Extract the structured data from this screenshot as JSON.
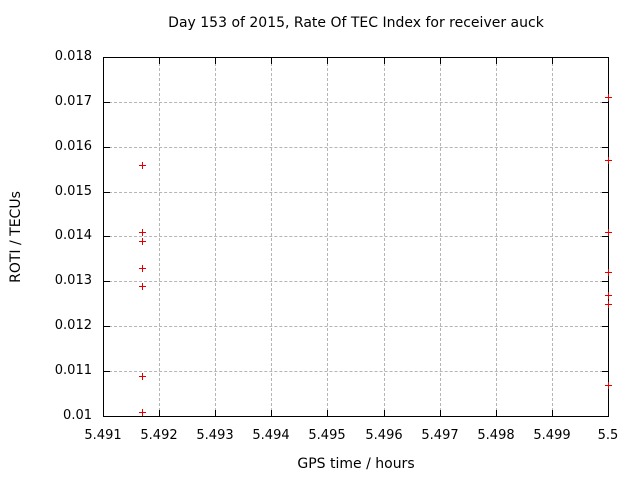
{
  "chart_data": {
    "type": "scatter",
    "title": "Day 153 of 2015, Rate Of TEC Index for receiver auck",
    "xlabel": "GPS time / hours",
    "ylabel": "ROTI / TECUs",
    "xlim": [
      5.491,
      5.5
    ],
    "ylim": [
      0.01,
      0.018
    ],
    "grid": true,
    "legend_position": "none",
    "marker": "plus",
    "colors": {
      "marker": "#e00000",
      "grid": "#b5b5b5",
      "frame": "#000000",
      "text": "#000000",
      "background": "#ffffff"
    },
    "x_ticks": [
      {
        "value": 5.491,
        "label": "5.491"
      },
      {
        "value": 5.492,
        "label": "5.492"
      },
      {
        "value": 5.493,
        "label": "5.493"
      },
      {
        "value": 5.494,
        "label": "5.494"
      },
      {
        "value": 5.495,
        "label": "5.495"
      },
      {
        "value": 5.496,
        "label": "5.496"
      },
      {
        "value": 5.497,
        "label": "5.497"
      },
      {
        "value": 5.498,
        "label": "5.498"
      },
      {
        "value": 5.499,
        "label": "5.499"
      },
      {
        "value": 5.5,
        "label": "5.5"
      }
    ],
    "y_ticks": [
      {
        "value": 0.01,
        "label": "0.01"
      },
      {
        "value": 0.011,
        "label": "0.011"
      },
      {
        "value": 0.012,
        "label": "0.012"
      },
      {
        "value": 0.013,
        "label": "0.013"
      },
      {
        "value": 0.014,
        "label": "0.014"
      },
      {
        "value": 0.015,
        "label": "0.015"
      },
      {
        "value": 0.016,
        "label": "0.016"
      },
      {
        "value": 0.017,
        "label": "0.017"
      },
      {
        "value": 0.018,
        "label": "0.018"
      }
    ],
    "series": [
      {
        "name": "ROTI",
        "points": [
          [
            5.4917,
            0.0156
          ],
          [
            5.4917,
            0.0141
          ],
          [
            5.4917,
            0.0139
          ],
          [
            5.4917,
            0.0133
          ],
          [
            5.4917,
            0.0129
          ],
          [
            5.4917,
            0.0109
          ],
          [
            5.4917,
            0.0101
          ],
          [
            5.5,
            0.0171
          ],
          [
            5.5,
            0.0157
          ],
          [
            5.5,
            0.0141
          ],
          [
            5.5,
            0.0132
          ],
          [
            5.5,
            0.0127
          ],
          [
            5.5,
            0.0125
          ],
          [
            5.5,
            0.0107
          ]
        ]
      }
    ]
  }
}
